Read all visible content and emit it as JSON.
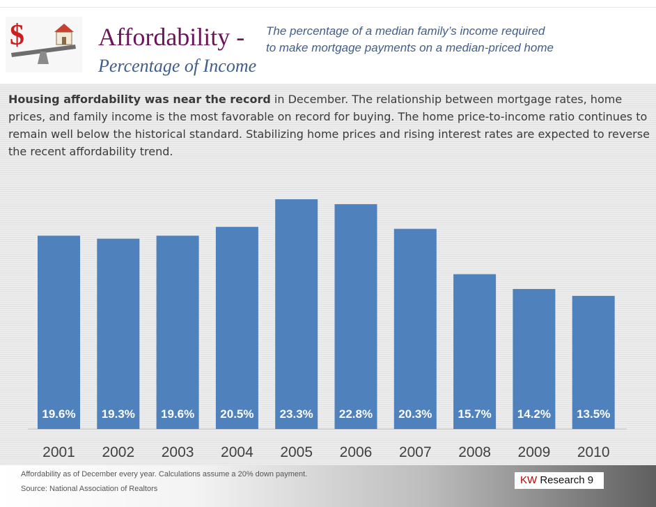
{
  "header": {
    "title": "Affordability -",
    "subtitle": "Percentage of Income",
    "description_line1": "The percentage of a median family’s income required",
    "description_line2": "to make mortgage payments on a median-priced home"
  },
  "intro": {
    "lead": "Housing affordability was near the record",
    "text": " in December. The relationship between mortgage rates, home prices, and family income is the most favorable on record for buying. The home price-to-income ratio continues to remain well below the historical standard. Stabilizing home prices and rising interest rates are expected to reverse the recent affordability trend."
  },
  "logo": {
    "symbol": "$",
    "icon": "dollar-house-seesaw-icon"
  },
  "chart_data": {
    "type": "bar",
    "categories": [
      "2001",
      "2002",
      "2003",
      "2004",
      "2005",
      "2006",
      "2007",
      "2008",
      "2009",
      "2010"
    ],
    "values": [
      19.6,
      19.3,
      19.6,
      20.5,
      23.3,
      22.8,
      20.3,
      15.7,
      14.2,
      13.5
    ],
    "labels": [
      "19.6%",
      "19.3%",
      "19.6%",
      "20.5%",
      "23.3%",
      "22.8%",
      "20.3%",
      "15.7%",
      "14.2%",
      "13.5%"
    ],
    "title": "",
    "xlabel": "",
    "ylabel": "",
    "grid": false,
    "bar_color": "#4f81bd",
    "label_color": "#ffffff"
  },
  "footer": {
    "note": "Affordability as of December every year. Calculations assume a 20% down payment.",
    "source": "Source: National Association of Realtors",
    "brand": "KW",
    "research": " Research 9"
  },
  "colors": {
    "title": "#6b1457",
    "subtitle": "#3f5e8c",
    "brand": "#c00000"
  }
}
